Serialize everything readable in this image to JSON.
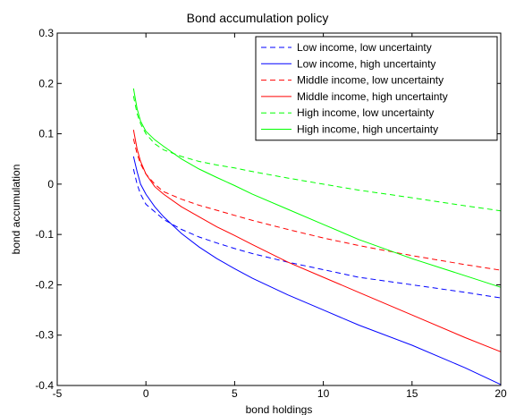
{
  "chart_data": {
    "type": "line",
    "title": "Bond accumulation policy",
    "xlabel": "bond holdings",
    "ylabel": "bond accumulation",
    "xlim": [
      -5,
      20
    ],
    "ylim": [
      -0.4,
      0.3
    ],
    "xticks": [
      -5,
      0,
      5,
      10,
      15,
      20
    ],
    "xtick_labels": [
      "-5",
      "0",
      "5",
      "10",
      "15",
      "20"
    ],
    "yticks": [
      -0.4,
      -0.3,
      -0.2,
      -0.1,
      0,
      0.1,
      0.2,
      0.3
    ],
    "ytick_labels": [
      "-0.4",
      "-0.3",
      "-0.2",
      "-0.1",
      "0",
      "0.1",
      "0.2",
      "0.3"
    ],
    "grid": false,
    "legend_position": "top-right",
    "series": [
      {
        "name": "Low income, low uncertainty",
        "color": "#0000ff",
        "dash": true,
        "x": [
          -0.7,
          -0.5,
          -0.3,
          0,
          0.5,
          1,
          2,
          3,
          4,
          5,
          6,
          8,
          10,
          12,
          15,
          18,
          20
        ],
        "y": [
          0.03,
          0.0,
          -0.02,
          -0.04,
          -0.055,
          -0.07,
          -0.09,
          -0.105,
          -0.117,
          -0.128,
          -0.138,
          -0.155,
          -0.17,
          -0.185,
          -0.2,
          -0.215,
          -0.226
        ]
      },
      {
        "name": "Low income, high uncertainty",
        "color": "#0000ff",
        "dash": false,
        "x": [
          -0.7,
          -0.5,
          -0.3,
          0,
          0.5,
          1,
          2,
          3,
          4,
          5,
          6,
          8,
          10,
          12,
          15,
          18,
          20
        ],
        "y": [
          0.055,
          0.025,
          0.0,
          -0.02,
          -0.045,
          -0.065,
          -0.098,
          -0.125,
          -0.148,
          -0.168,
          -0.187,
          -0.22,
          -0.25,
          -0.28,
          -0.32,
          -0.365,
          -0.398
        ]
      },
      {
        "name": "Middle income, low uncertainty",
        "color": "#ff0000",
        "dash": true,
        "x": [
          -0.7,
          -0.5,
          -0.3,
          0,
          0.5,
          1,
          2,
          3,
          4,
          5,
          6,
          8,
          10,
          12,
          15,
          18,
          20
        ],
        "y": [
          0.09,
          0.06,
          0.04,
          0.02,
          0.0,
          -0.015,
          -0.03,
          -0.042,
          -0.052,
          -0.062,
          -0.072,
          -0.09,
          -0.107,
          -0.122,
          -0.142,
          -0.16,
          -0.171
        ]
      },
      {
        "name": "Middle income, high uncertainty",
        "color": "#ff0000",
        "dash": false,
        "x": [
          -0.7,
          -0.5,
          -0.3,
          0,
          0.5,
          1,
          2,
          3,
          4,
          5,
          6,
          8,
          10,
          12,
          15,
          18,
          20
        ],
        "y": [
          0.108,
          0.07,
          0.045,
          0.02,
          -0.005,
          -0.02,
          -0.045,
          -0.065,
          -0.085,
          -0.102,
          -0.12,
          -0.155,
          -0.185,
          -0.215,
          -0.26,
          -0.305,
          -0.333
        ]
      },
      {
        "name": "High income, low uncertainty",
        "color": "#00ff00",
        "dash": true,
        "x": [
          -0.7,
          -0.5,
          -0.3,
          0,
          0.5,
          1,
          2,
          3,
          4,
          5,
          6,
          8,
          10,
          12,
          15,
          18,
          20
        ],
        "y": [
          0.175,
          0.14,
          0.12,
          0.1,
          0.08,
          0.068,
          0.055,
          0.045,
          0.038,
          0.032,
          0.025,
          0.012,
          0.0,
          -0.012,
          -0.027,
          -0.043,
          -0.053
        ]
      },
      {
        "name": "High income, high uncertainty",
        "color": "#00ff00",
        "dash": false,
        "x": [
          -0.7,
          -0.5,
          -0.3,
          0,
          0.5,
          1,
          2,
          3,
          4,
          5,
          6,
          8,
          10,
          12,
          15,
          18,
          20
        ],
        "y": [
          0.19,
          0.15,
          0.125,
          0.105,
          0.088,
          0.075,
          0.05,
          0.03,
          0.013,
          -0.003,
          -0.02,
          -0.05,
          -0.08,
          -0.11,
          -0.148,
          -0.182,
          -0.205
        ]
      }
    ]
  }
}
